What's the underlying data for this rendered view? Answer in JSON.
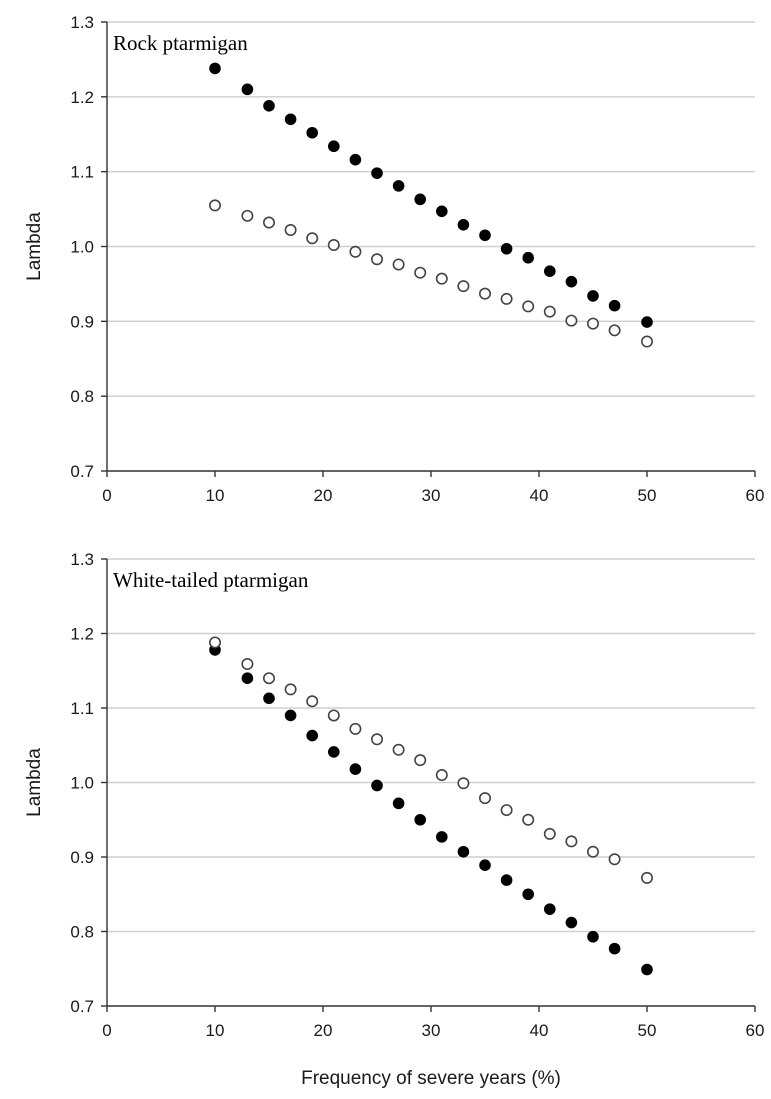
{
  "chart_data": [
    {
      "type": "scatter",
      "title": "Rock ptarmigan",
      "xlabel": "",
      "ylabel": "Lambda",
      "xlim": [
        0,
        60
      ],
      "ylim": [
        0.7,
        1.3
      ],
      "xticks": [
        0,
        10,
        20,
        30,
        40,
        50,
        60
      ],
      "yticks": [
        0.7,
        0.8,
        0.9,
        1.0,
        1.1,
        1.2,
        1.3
      ],
      "grid": "horizontal",
      "series": [
        {
          "marker": "filled",
          "x": [
            10,
            13,
            15,
            17,
            19,
            21,
            23,
            25,
            27,
            29,
            31,
            33,
            35,
            37,
            39,
            41,
            43,
            45,
            47,
            50
          ],
          "y": [
            1.238,
            1.21,
            1.188,
            1.17,
            1.152,
            1.134,
            1.116,
            1.098,
            1.081,
            1.063,
            1.047,
            1.029,
            1.015,
            0.997,
            0.985,
            0.967,
            0.953,
            0.934,
            0.921,
            0.899
          ]
        },
        {
          "marker": "open",
          "x": [
            10,
            13,
            15,
            17,
            19,
            21,
            23,
            25,
            27,
            29,
            31,
            33,
            35,
            37,
            39,
            41,
            43,
            45,
            47,
            50
          ],
          "y": [
            1.055,
            1.041,
            1.032,
            1.022,
            1.011,
            1.002,
            0.993,
            0.983,
            0.976,
            0.965,
            0.957,
            0.947,
            0.937,
            0.93,
            0.92,
            0.913,
            0.901,
            0.897,
            0.888,
            0.873
          ]
        }
      ]
    },
    {
      "type": "scatter",
      "title": "White-tailed ptarmigan",
      "xlabel": "Frequency of severe years (%)",
      "ylabel": "Lambda",
      "xlim": [
        0,
        60
      ],
      "ylim": [
        0.7,
        1.3
      ],
      "xticks": [
        0,
        10,
        20,
        30,
        40,
        50,
        60
      ],
      "yticks": [
        0.7,
        0.8,
        0.9,
        1.0,
        1.1,
        1.2,
        1.3
      ],
      "grid": "horizontal",
      "series": [
        {
          "marker": "filled",
          "x": [
            10,
            13,
            15,
            17,
            19,
            21,
            23,
            25,
            27,
            29,
            31,
            33,
            35,
            37,
            39,
            41,
            43,
            45,
            47,
            50
          ],
          "y": [
            1.178,
            1.14,
            1.113,
            1.09,
            1.063,
            1.041,
            1.018,
            0.996,
            0.972,
            0.95,
            0.927,
            0.907,
            0.889,
            0.869,
            0.85,
            0.83,
            0.812,
            0.793,
            0.777,
            0.749
          ]
        },
        {
          "marker": "open",
          "x": [
            10,
            13,
            15,
            17,
            19,
            21,
            23,
            25,
            27,
            29,
            31,
            33,
            35,
            37,
            39,
            41,
            43,
            45,
            47,
            50
          ],
          "y": [
            1.188,
            1.159,
            1.14,
            1.125,
            1.109,
            1.09,
            1.072,
            1.058,
            1.044,
            1.03,
            1.01,
            0.999,
            0.979,
            0.963,
            0.95,
            0.931,
            0.921,
            0.907,
            0.897,
            0.872
          ]
        }
      ]
    }
  ]
}
